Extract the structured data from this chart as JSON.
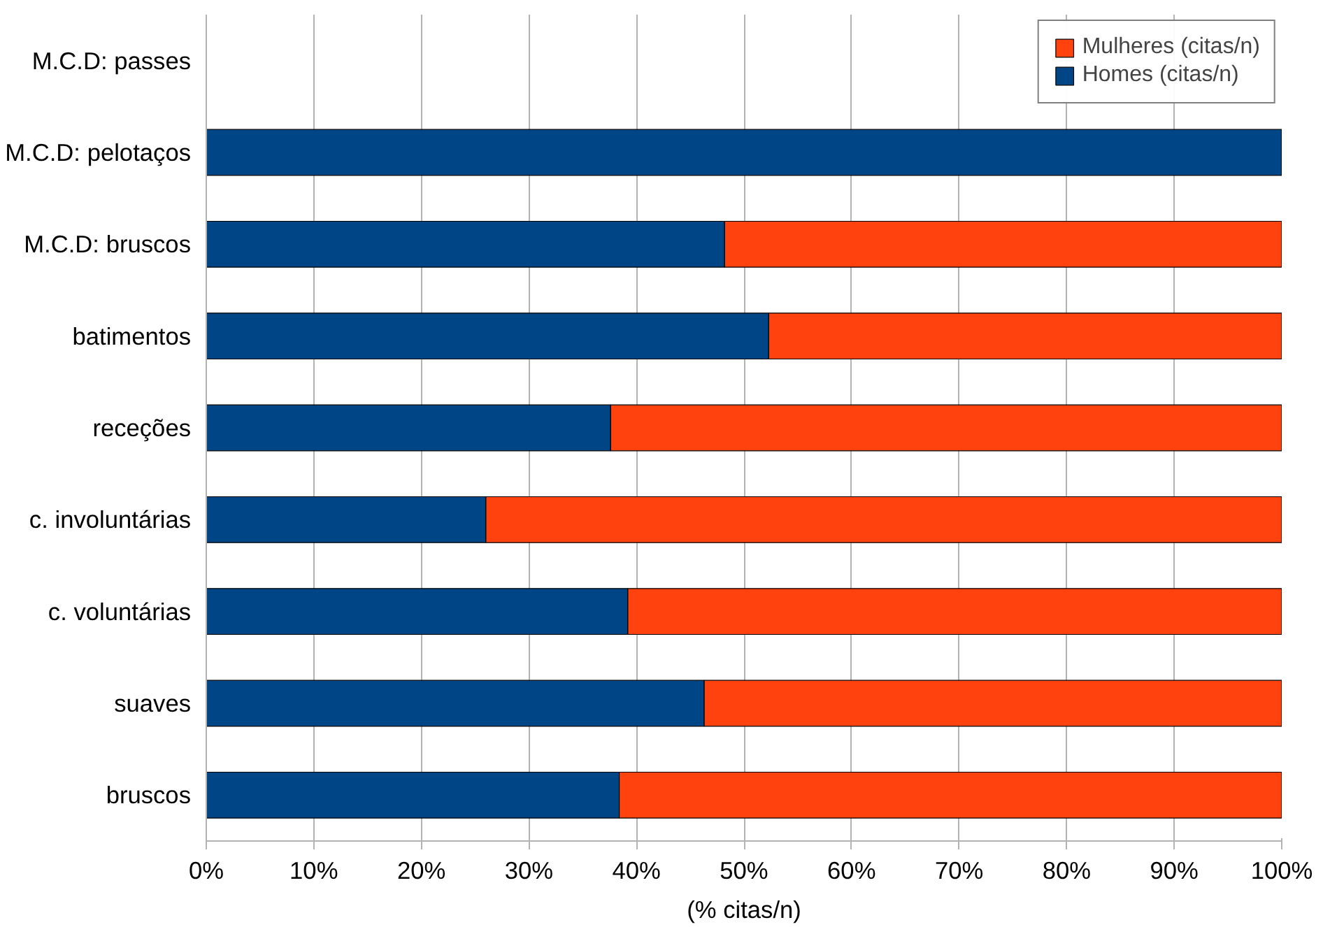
{
  "chart_data": {
    "type": "bar",
    "orientation": "horizontal",
    "stacked": true,
    "categories": [
      "M.C.D: passes",
      "M.C.D: pelotaços",
      "M.C.D: bruscos",
      "batimentos",
      "receções",
      "c. involuntárias",
      "c. voluntárias",
      "suaves",
      "bruscos"
    ],
    "series": [
      {
        "name": "Homes (citas/n)",
        "color": "#004586",
        "values": [
          null,
          100,
          48.2,
          52.3,
          37.6,
          26.0,
          39.2,
          46.3,
          38.4
        ]
      },
      {
        "name": "Mulheres (citas/n)",
        "color": "#ff420e",
        "values": [
          null,
          null,
          51.8,
          47.7,
          62.4,
          74.0,
          60.8,
          53.7,
          61.6
        ]
      }
    ],
    "xlim": [
      0,
      100
    ],
    "xticks": [
      {
        "value": 0,
        "label": "0%"
      },
      {
        "value": 10,
        "label": "10%"
      },
      {
        "value": 20,
        "label": "20%"
      },
      {
        "value": 30,
        "label": "30%"
      },
      {
        "value": 40,
        "label": "40%"
      },
      {
        "value": 50,
        "label": "50%"
      },
      {
        "value": 60,
        "label": "60%"
      },
      {
        "value": 70,
        "label": "70%"
      },
      {
        "value": 80,
        "label": "80%"
      },
      {
        "value": 90,
        "label": "90%"
      },
      {
        "value": 100,
        "label": "100%"
      }
    ],
    "xlabel": "(% citas/n)",
    "grid": "x",
    "legend": "top right"
  }
}
